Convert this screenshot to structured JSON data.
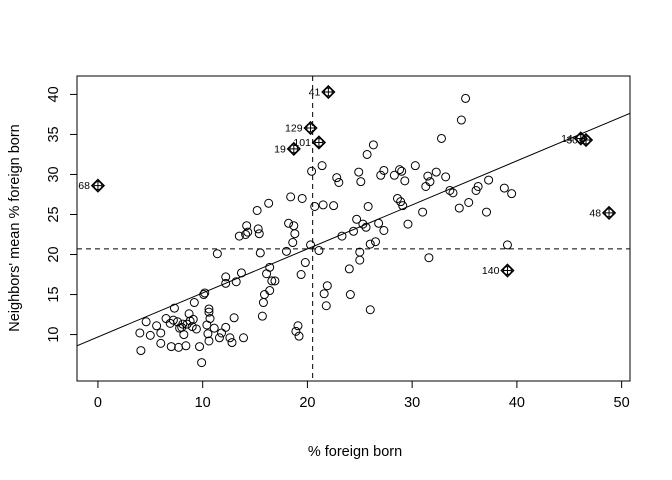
{
  "chart_data": {
    "type": "scatter",
    "title": "",
    "xlabel": "% foreign born",
    "ylabel": "Neighbors' mean % foreign born",
    "xlim": [
      -2,
      50.8
    ],
    "ylim": [
      4.2,
      42.3
    ],
    "xticks": [
      0,
      10,
      20,
      30,
      40,
      50
    ],
    "yticks": [
      10,
      15,
      20,
      25,
      30,
      35,
      40
    ],
    "grid": false,
    "mean_x": 20.5,
    "mean_y": 20.7,
    "regression_line": {
      "intercept": 9.7,
      "slope": 0.55
    },
    "points": [
      [
        4.0,
        10.2
      ],
      [
        4.1,
        8.0
      ],
      [
        4.6,
        11.6
      ],
      [
        5.0,
        9.9
      ],
      [
        5.6,
        11.1
      ],
      [
        6.0,
        10.2
      ],
      [
        6.0,
        8.9
      ],
      [
        6.5,
        12.0
      ],
      [
        6.9,
        11.4
      ],
      [
        7.0,
        8.5
      ],
      [
        7.2,
        11.8
      ],
      [
        7.3,
        13.3
      ],
      [
        7.6,
        11.6
      ],
      [
        7.7,
        8.4
      ],
      [
        7.8,
        10.8
      ],
      [
        8.0,
        10.9
      ],
      [
        8.1,
        11.3
      ],
      [
        8.2,
        10.0
      ],
      [
        8.4,
        8.6
      ],
      [
        8.5,
        11.3
      ],
      [
        8.7,
        12.6
      ],
      [
        8.8,
        11.7
      ],
      [
        9.0,
        11.0
      ],
      [
        9.1,
        11.9
      ],
      [
        9.2,
        14.0
      ],
      [
        9.4,
        10.7
      ],
      [
        9.7,
        8.5
      ],
      [
        9.9,
        6.5
      ],
      [
        10.1,
        15.0
      ],
      [
        10.2,
        15.2
      ],
      [
        10.4,
        11.2
      ],
      [
        10.5,
        10.1
      ],
      [
        10.6,
        12.8
      ],
      [
        10.6,
        13.2
      ],
      [
        10.6,
        9.2
      ],
      [
        10.7,
        12.0
      ],
      [
        11.1,
        10.8
      ],
      [
        11.4,
        20.1
      ],
      [
        11.6,
        9.6
      ],
      [
        11.8,
        10.2
      ],
      [
        12.2,
        16.4
      ],
      [
        12.2,
        17.2
      ],
      [
        12.2,
        10.9
      ],
      [
        12.6,
        9.6
      ],
      [
        12.8,
        9.0
      ],
      [
        13.0,
        12.1
      ],
      [
        13.2,
        16.6
      ],
      [
        13.5,
        22.3
      ],
      [
        13.7,
        17.7
      ],
      [
        13.9,
        9.6
      ],
      [
        14.1,
        22.5
      ],
      [
        14.2,
        23.6
      ],
      [
        14.3,
        22.8
      ],
      [
        15.2,
        25.5
      ],
      [
        15.3,
        23.2
      ],
      [
        15.4,
        22.6
      ],
      [
        15.5,
        20.2
      ],
      [
        15.7,
        12.3
      ],
      [
        15.8,
        14.0
      ],
      [
        15.9,
        15.0
      ],
      [
        16.1,
        17.6
      ],
      [
        16.3,
        26.4
      ],
      [
        16.4,
        15.5
      ],
      [
        16.4,
        18.4
      ],
      [
        16.6,
        16.7
      ],
      [
        16.9,
        16.7
      ],
      [
        18.0,
        20.4
      ],
      [
        18.2,
        23.9
      ],
      [
        18.4,
        27.2
      ],
      [
        18.6,
        21.5
      ],
      [
        18.7,
        23.6
      ],
      [
        18.8,
        22.6
      ],
      [
        18.9,
        10.4
      ],
      [
        19.1,
        11.1
      ],
      [
        19.2,
        9.8
      ],
      [
        19.4,
        17.5
      ],
      [
        19.5,
        27.0
      ],
      [
        19.8,
        19.0
      ],
      [
        20.3,
        21.2
      ],
      [
        20.4,
        30.4
      ],
      [
        20.7,
        26.0
      ],
      [
        21.1,
        20.5
      ],
      [
        21.4,
        31.1
      ],
      [
        21.5,
        26.2
      ],
      [
        21.6,
        15.1
      ],
      [
        21.8,
        13.6
      ],
      [
        21.9,
        16.1
      ],
      [
        22.5,
        26.1
      ],
      [
        22.8,
        29.6
      ],
      [
        23.0,
        29.0
      ],
      [
        23.3,
        22.3
      ],
      [
        24.0,
        18.2
      ],
      [
        24.1,
        15.0
      ],
      [
        24.4,
        22.9
      ],
      [
        24.7,
        24.4
      ],
      [
        24.9,
        30.3
      ],
      [
        25.0,
        19.3
      ],
      [
        25.0,
        20.3
      ],
      [
        25.1,
        29.1
      ],
      [
        25.3,
        23.8
      ],
      [
        25.6,
        23.4
      ],
      [
        25.7,
        32.5
      ],
      [
        25.8,
        26.0
      ],
      [
        26.0,
        21.3
      ],
      [
        26.0,
        13.1
      ],
      [
        26.3,
        33.7
      ],
      [
        26.5,
        21.6
      ],
      [
        26.8,
        23.9
      ],
      [
        27.0,
        29.9
      ],
      [
        27.3,
        23.0
      ],
      [
        27.3,
        30.5
      ],
      [
        28.3,
        29.9
      ],
      [
        28.6,
        27.0
      ],
      [
        28.8,
        30.6
      ],
      [
        28.9,
        26.6
      ],
      [
        29.0,
        30.4
      ],
      [
        29.1,
        26.1
      ],
      [
        29.3,
        29.2
      ],
      [
        29.6,
        23.8
      ],
      [
        30.3,
        31.1
      ],
      [
        31.0,
        25.3
      ],
      [
        31.3,
        28.5
      ],
      [
        31.5,
        29.8
      ],
      [
        31.6,
        19.6
      ],
      [
        31.7,
        29.1
      ],
      [
        32.3,
        30.3
      ],
      [
        32.8,
        34.5
      ],
      [
        33.2,
        29.7
      ],
      [
        33.6,
        28.0
      ],
      [
        33.9,
        27.7
      ],
      [
        34.5,
        25.8
      ],
      [
        34.7,
        36.8
      ],
      [
        35.1,
        39.5
      ],
      [
        35.4,
        26.5
      ],
      [
        36.1,
        28.0
      ],
      [
        36.3,
        28.5
      ],
      [
        37.1,
        25.3
      ],
      [
        37.3,
        29.3
      ],
      [
        38.8,
        28.3
      ],
      [
        39.1,
        21.2
      ],
      [
        39.5,
        27.6
      ]
    ],
    "highlighted_points": [
      {
        "label": "68",
        "x": 0.0,
        "y": 28.6
      },
      {
        "label": "41",
        "x": 22.0,
        "y": 40.3
      },
      {
        "label": "129",
        "x": 20.3,
        "y": 35.8
      },
      {
        "label": "101",
        "x": 21.1,
        "y": 34.0
      },
      {
        "label": "19",
        "x": 18.7,
        "y": 33.2
      },
      {
        "label": "14",
        "x": 46.1,
        "y": 34.5
      },
      {
        "label": "30",
        "x": 46.6,
        "y": 34.3
      },
      {
        "label": "48",
        "x": 48.8,
        "y": 25.2
      },
      {
        "label": "140",
        "x": 39.1,
        "y": 18.0
      }
    ]
  }
}
